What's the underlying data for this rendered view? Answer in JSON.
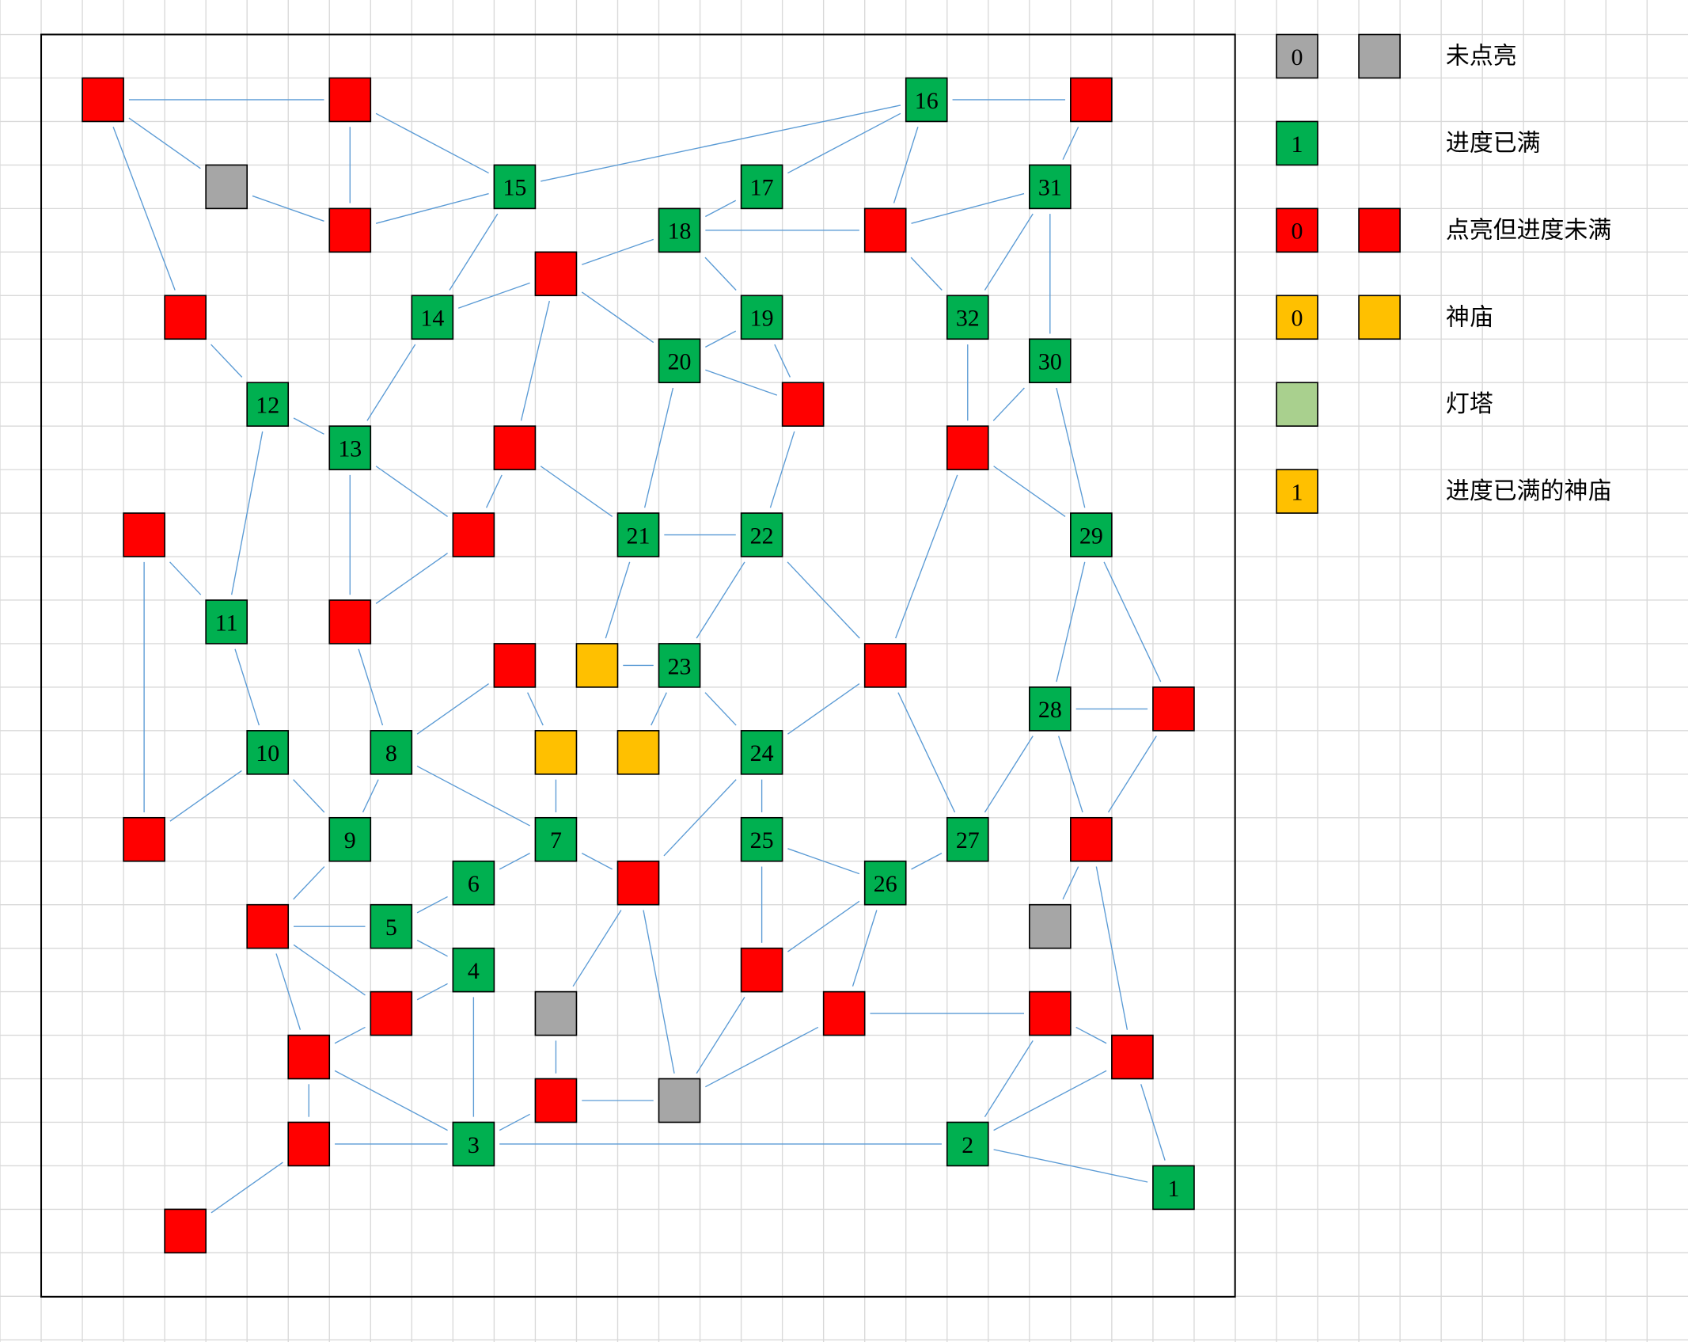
{
  "nodes": {
    "labels": [
      1,
      2,
      3,
      4,
      5,
      6,
      7,
      8,
      9,
      10,
      11,
      12,
      13,
      14,
      15,
      16,
      17,
      18,
      19,
      20,
      21,
      22,
      23,
      24,
      25,
      26,
      27,
      28,
      29,
      30,
      31,
      32
    ]
  },
  "legend": [
    {
      "sample": "0",
      "color": "#a6a6a6",
      "plain_swatch": true,
      "text": "未点亮"
    },
    {
      "sample": "1",
      "color": "#00b050",
      "plain_swatch": false,
      "text": "进度已满"
    },
    {
      "sample": "0",
      "color": "#ff0000",
      "plain_swatch": true,
      "text": "点亮但进度未满"
    },
    {
      "sample": "0",
      "color": "#ffc000",
      "plain_swatch": true,
      "text": "神庙"
    },
    {
      "color": "#a9d08e",
      "plain_swatch": true,
      "text": "灯塔"
    },
    {
      "sample": "1",
      "color": "#ffc000",
      "plain_swatch": false,
      "text": "进度已满的神庙"
    }
  ]
}
